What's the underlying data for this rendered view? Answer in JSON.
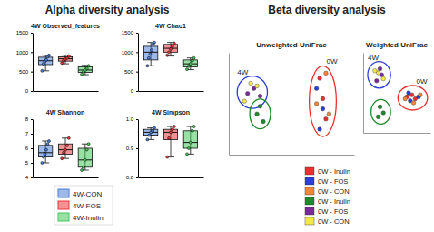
{
  "chart_data": [
    {
      "type": "box",
      "heading": "Alpha diversity analysis",
      "title": "4W Observed_features",
      "categories": [
        "4W-CON",
        "4W-FOS",
        "4W-Inulin"
      ],
      "colors": [
        "#4a7fd8",
        "#e8393d",
        "#45c75a"
      ],
      "boxes": [
        {
          "min": 520,
          "q1": 680,
          "median": 780,
          "q3": 870,
          "max": 920,
          "points": [
            520,
            700,
            770,
            800,
            880,
            920
          ]
        },
        {
          "min": 700,
          "q1": 770,
          "median": 830,
          "q3": 880,
          "max": 920,
          "points": [
            720,
            780,
            820,
            850,
            900
          ]
        },
        {
          "min": 420,
          "q1": 480,
          "median": 540,
          "q3": 620,
          "max": 660,
          "points": [
            430,
            500,
            540,
            580,
            650
          ]
        }
      ],
      "ylim": [
        0,
        1500
      ],
      "yticks": [
        0,
        500,
        1000,
        1500
      ],
      "tick_labels": "y"
    },
    {
      "type": "box",
      "title": "4W Chao1",
      "categories": [
        "4W-CON",
        "4W-FOS",
        "4W-Inulin"
      ],
      "colors": [
        "#4a7fd8",
        "#e8393d",
        "#45c75a"
      ],
      "boxes": [
        {
          "min": 650,
          "q1": 800,
          "median": 1000,
          "q3": 1150,
          "max": 1250,
          "points": [
            650,
            850,
            950,
            1050,
            1200,
            1250
          ]
        },
        {
          "min": 900,
          "q1": 1000,
          "median": 1100,
          "q3": 1200,
          "max": 1250,
          "points": [
            920,
            1000,
            1080,
            1150,
            1230
          ]
        },
        {
          "min": 550,
          "q1": 620,
          "median": 700,
          "q3": 800,
          "max": 850,
          "points": [
            560,
            640,
            700,
            780,
            850
          ]
        }
      ],
      "ylim": [
        0,
        1500
      ],
      "yticks": [
        0,
        500,
        1000,
        1500
      ],
      "tick_labels": "y"
    },
    {
      "type": "box",
      "title": "4W Shannon",
      "categories": [
        "4W-CON",
        "4W-FOS",
        "4W-Inulin"
      ],
      "colors": [
        "#4a7fd8",
        "#e8393d",
        "#45c75a"
      ],
      "boxes": [
        {
          "min": 5.0,
          "q1": 5.4,
          "median": 5.7,
          "q3": 6.2,
          "max": 6.5,
          "points": [
            5.0,
            5.4,
            5.6,
            5.9,
            6.3,
            6.5
          ]
        },
        {
          "min": 5.3,
          "q1": 5.6,
          "median": 5.9,
          "q3": 6.3,
          "max": 6.7,
          "points": [
            5.3,
            5.7,
            5.9,
            6.2,
            6.7
          ]
        },
        {
          "min": 4.5,
          "q1": 4.7,
          "median": 5.2,
          "q3": 6.0,
          "max": 6.3,
          "points": [
            4.5,
            4.7,
            5.2,
            5.9,
            6.3
          ]
        }
      ],
      "ylim": [
        4,
        8
      ],
      "yticks": [
        4,
        5,
        6,
        7,
        8
      ],
      "tick_labels": "y"
    },
    {
      "type": "box",
      "title": "4W Simpson",
      "categories": [
        "4W-CON",
        "4W-FOS",
        "4W-Inulin"
      ],
      "colors": [
        "#4a7fd8",
        "#e8393d",
        "#45c75a"
      ],
      "boxes": [
        {
          "min": 0.93,
          "q1": 0.945,
          "median": 0.955,
          "q3": 0.965,
          "max": 0.97,
          "points": [
            0.93,
            0.945,
            0.955,
            0.96,
            0.97
          ]
        },
        {
          "min": 0.87,
          "q1": 0.93,
          "median": 0.955,
          "q3": 0.965,
          "max": 0.975,
          "points": [
            0.87,
            0.935,
            0.955,
            0.965,
            0.975
          ]
        },
        {
          "min": 0.88,
          "q1": 0.9,
          "median": 0.92,
          "q3": 0.96,
          "max": 0.975,
          "points": [
            0.88,
            0.9,
            0.92,
            0.96,
            0.975
          ]
        }
      ],
      "ylim": [
        0.8,
        1.0
      ],
      "yticks": [
        0.8,
        0.9,
        {
          "value": 1.0,
          "label": "1.0"
        }
      ],
      "tick_labels": "y"
    },
    {
      "type": "scatter",
      "heading": "Beta diversity analysis",
      "title": "Unweighted UniFrac",
      "annotations": [
        "4W",
        "0W"
      ],
      "xlim": [
        -1,
        1
      ],
      "ylim": [
        -1,
        1
      ],
      "tick_labels": false,
      "series": [
        {
          "name": "0W - Inulin",
          "color": "#e8312f",
          "x": [
            0.45,
            0.5,
            0.55
          ],
          "y": [
            0.5,
            0.1,
            -0.3
          ]
        },
        {
          "name": "0W - FOS",
          "color": "#2a3fd6",
          "x": [
            0.4,
            0.5,
            0.45
          ],
          "y": [
            0.3,
            -0.1,
            -0.5
          ]
        },
        {
          "name": "0W - CON",
          "color": "#f0883a",
          "x": [
            0.55,
            0.4,
            0.6
          ],
          "y": [
            0.6,
            0.0,
            -0.2
          ]
        },
        {
          "name": "0W - Inulin",
          "color": "#1f8a2a",
          "x": [
            -0.55,
            -0.45,
            -0.5
          ],
          "y": [
            -0.2,
            -0.35,
            -0.05
          ]
        },
        {
          "name": "0W - FOS",
          "color": "#7a2a9a",
          "x": [
            -0.6,
            -0.5,
            -0.7
          ],
          "y": [
            0.3,
            0.15,
            0.2
          ]
        },
        {
          "name": "0W - CON",
          "color": "#f2e84a",
          "x": [
            -0.65,
            -0.55,
            -0.75
          ],
          "y": [
            0.4,
            0.35,
            0.05
          ]
        }
      ]
    },
    {
      "type": "scatter",
      "title": "Weighted UniFrac",
      "annotations": [
        "4W",
        "0W"
      ],
      "xlim": [
        -1,
        1
      ],
      "ylim": [
        -1,
        1
      ],
      "tick_labels": false,
      "series": [
        {
          "color": "#e8312f",
          "x": [
            0.3,
            0.55,
            0.45
          ],
          "y": [
            -0.1,
            -0.15,
            -0.05
          ]
        },
        {
          "color": "#2a3fd6",
          "x": [
            0.4,
            0.65,
            0.35
          ],
          "y": [
            -0.2,
            -0.1,
            0.0
          ]
        },
        {
          "color": "#f0883a",
          "x": [
            0.5,
            0.7,
            0.25
          ],
          "y": [
            -0.25,
            -0.05,
            -0.15
          ]
        },
        {
          "color": "#1f8a2a",
          "x": [
            -0.5,
            -0.4,
            -0.55
          ],
          "y": [
            -0.35,
            -0.5,
            -0.6
          ]
        },
        {
          "color": "#7a2a9a",
          "x": [
            -0.45,
            -0.6,
            -0.5
          ],
          "y": [
            0.45,
            0.3,
            0.6
          ]
        },
        {
          "color": "#f2e84a",
          "x": [
            -0.55,
            -0.4,
            -0.65
          ],
          "y": [
            0.5,
            0.35,
            0.55
          ]
        }
      ]
    }
  ]
}
